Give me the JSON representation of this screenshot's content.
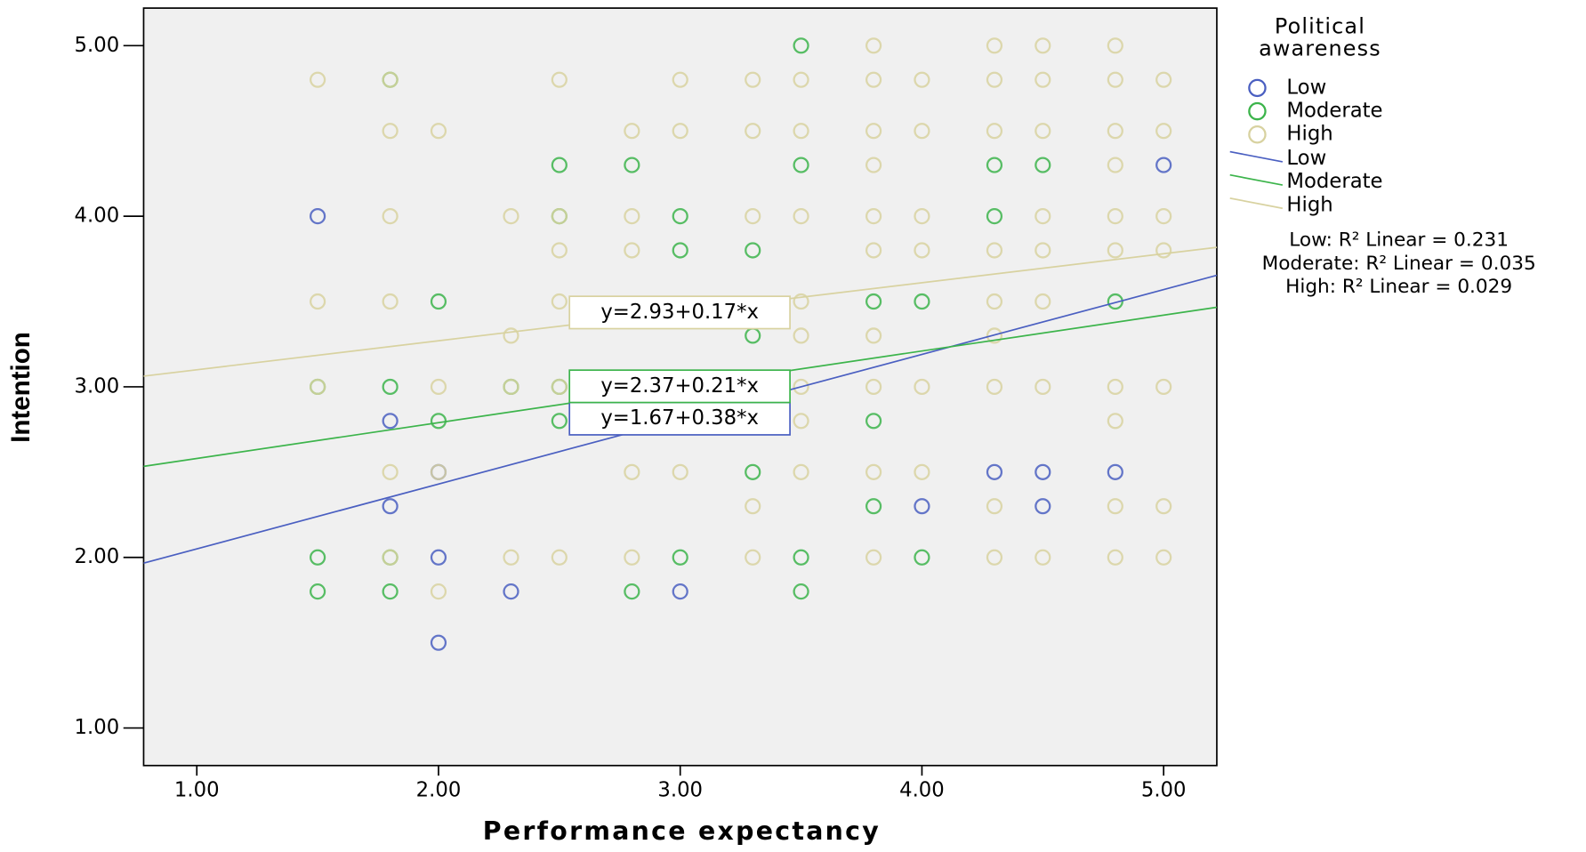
{
  "chart_data": {
    "type": "scatter",
    "x_label": "Performance expectancy",
    "y_label": "Intention",
    "xlim": [
      0.78,
      5.22
    ],
    "ylim": [
      0.78,
      5.22
    ],
    "xticks": [
      {
        "value": 1,
        "label": "1.00"
      },
      {
        "value": 2,
        "label": "2.00"
      },
      {
        "value": 3,
        "label": "3.00"
      },
      {
        "value": 4,
        "label": "4.00"
      },
      {
        "value": 5,
        "label": "5.00"
      }
    ],
    "yticks": [
      {
        "value": 1,
        "label": "1.00"
      },
      {
        "value": 2,
        "label": "2.00"
      },
      {
        "value": 3,
        "label": "3.00"
      },
      {
        "value": 4,
        "label": "4.00"
      },
      {
        "value": 5,
        "label": "5.00"
      }
    ],
    "legend_title": "Political awareness",
    "series": [
      {
        "name": "Low",
        "color": "#4a5fc1",
        "x": [
          1.5,
          1.8,
          1.8,
          2.0,
          2.0,
          2.0,
          2.3,
          3.0,
          4.0,
          4.3,
          4.5,
          4.5,
          4.8,
          5.0
        ],
        "values": [
          4.0,
          2.8,
          2.3,
          2.5,
          2.0,
          1.5,
          1.8,
          1.8,
          2.3,
          2.5,
          2.5,
          2.3,
          2.5,
          4.3
        ]
      },
      {
        "name": "Moderate",
        "color": "#3cb44b",
        "x": [
          1.5,
          1.5,
          1.5,
          1.8,
          1.8,
          1.8,
          1.8,
          2.0,
          2.0,
          2.3,
          2.5,
          2.5,
          2.5,
          2.5,
          2.8,
          2.8,
          3.0,
          3.0,
          3.0,
          3.3,
          3.3,
          3.3,
          3.5,
          3.5,
          3.5,
          3.5,
          3.8,
          3.8,
          3.8,
          4.0,
          4.0,
          4.3,
          4.3,
          4.5,
          4.8
        ],
        "values": [
          3.0,
          2.0,
          1.8,
          4.8,
          3.0,
          2.0,
          1.8,
          3.5,
          2.8,
          3.0,
          4.3,
          4.0,
          3.0,
          2.8,
          4.3,
          1.8,
          4.0,
          3.8,
          2.0,
          3.8,
          3.3,
          2.5,
          5.0,
          4.3,
          2.0,
          1.8,
          3.5,
          2.8,
          2.3,
          3.5,
          2.0,
          4.3,
          4.0,
          4.3,
          3.5
        ]
      },
      {
        "name": "High",
        "color": "#d8d2a0",
        "x": [
          1.5,
          1.5,
          1.5,
          1.8,
          1.8,
          1.8,
          1.8,
          1.8,
          1.8,
          2.0,
          2.0,
          2.0,
          2.0,
          2.3,
          2.3,
          2.3,
          2.3,
          2.5,
          2.5,
          2.5,
          2.5,
          2.5,
          2.5,
          2.8,
          2.8,
          2.8,
          2.8,
          2.8,
          2.8,
          3.0,
          3.0,
          3.0,
          3.3,
          3.3,
          3.3,
          3.3,
          3.3,
          3.5,
          3.5,
          3.5,
          3.5,
          3.5,
          3.5,
          3.5,
          3.5,
          3.8,
          3.8,
          3.8,
          3.8,
          3.8,
          3.8,
          3.8,
          3.8,
          3.8,
          3.8,
          4.0,
          4.0,
          4.0,
          4.0,
          4.0,
          4.0,
          4.3,
          4.3,
          4.3,
          4.3,
          4.3,
          4.3,
          4.3,
          4.3,
          4.3,
          4.5,
          4.5,
          4.5,
          4.5,
          4.5,
          4.5,
          4.5,
          4.5,
          4.8,
          4.8,
          4.8,
          4.8,
          4.8,
          4.8,
          4.8,
          4.8,
          4.8,
          4.8,
          5.0,
          5.0,
          5.0,
          5.0,
          5.0,
          5.0,
          5.0
        ],
        "values": [
          4.8,
          3.5,
          3.0,
          4.8,
          4.5,
          4.0,
          3.5,
          2.5,
          2.0,
          4.5,
          3.0,
          2.5,
          1.8,
          4.0,
          3.3,
          3.0,
          2.0,
          4.8,
          4.0,
          3.8,
          3.5,
          3.0,
          2.0,
          4.5,
          4.0,
          3.8,
          3.0,
          2.5,
          2.0,
          4.8,
          4.5,
          2.5,
          4.8,
          4.5,
          4.0,
          2.3,
          2.0,
          4.8,
          4.5,
          4.0,
          3.5,
          3.3,
          3.0,
          2.8,
          2.5,
          5.0,
          4.8,
          4.5,
          4.3,
          4.0,
          3.8,
          3.3,
          3.0,
          2.5,
          2.0,
          4.8,
          4.5,
          4.0,
          3.8,
          3.0,
          2.5,
          5.0,
          4.8,
          4.5,
          3.8,
          3.5,
          3.3,
          3.0,
          2.3,
          2.0,
          5.0,
          4.8,
          4.5,
          4.0,
          3.8,
          3.5,
          3.0,
          2.0,
          5.0,
          4.8,
          4.5,
          4.3,
          4.0,
          3.8,
          3.0,
          2.8,
          2.3,
          2.0,
          4.8,
          4.5,
          4.0,
          3.8,
          3.0,
          2.3,
          2.0
        ]
      }
    ],
    "fit_lines": [
      {
        "name": "Low",
        "color": "#4a5fc1",
        "intercept": 1.67,
        "slope": 0.38,
        "label": "y=1.67+0.38*x",
        "r2_label": "Low: R² Linear = 0.231"
      },
      {
        "name": "Moderate",
        "color": "#3cb44b",
        "intercept": 2.37,
        "slope": 0.21,
        "label": "y=2.37+0.21*x",
        "r2_label": "Moderate: R² Linear = 0.035"
      },
      {
        "name": "High",
        "color": "#d8d2a0",
        "intercept": 2.93,
        "slope": 0.17,
        "label": "y=2.93+0.17*x",
        "r2_label": "High: R² Linear = 0.029"
      }
    ]
  }
}
